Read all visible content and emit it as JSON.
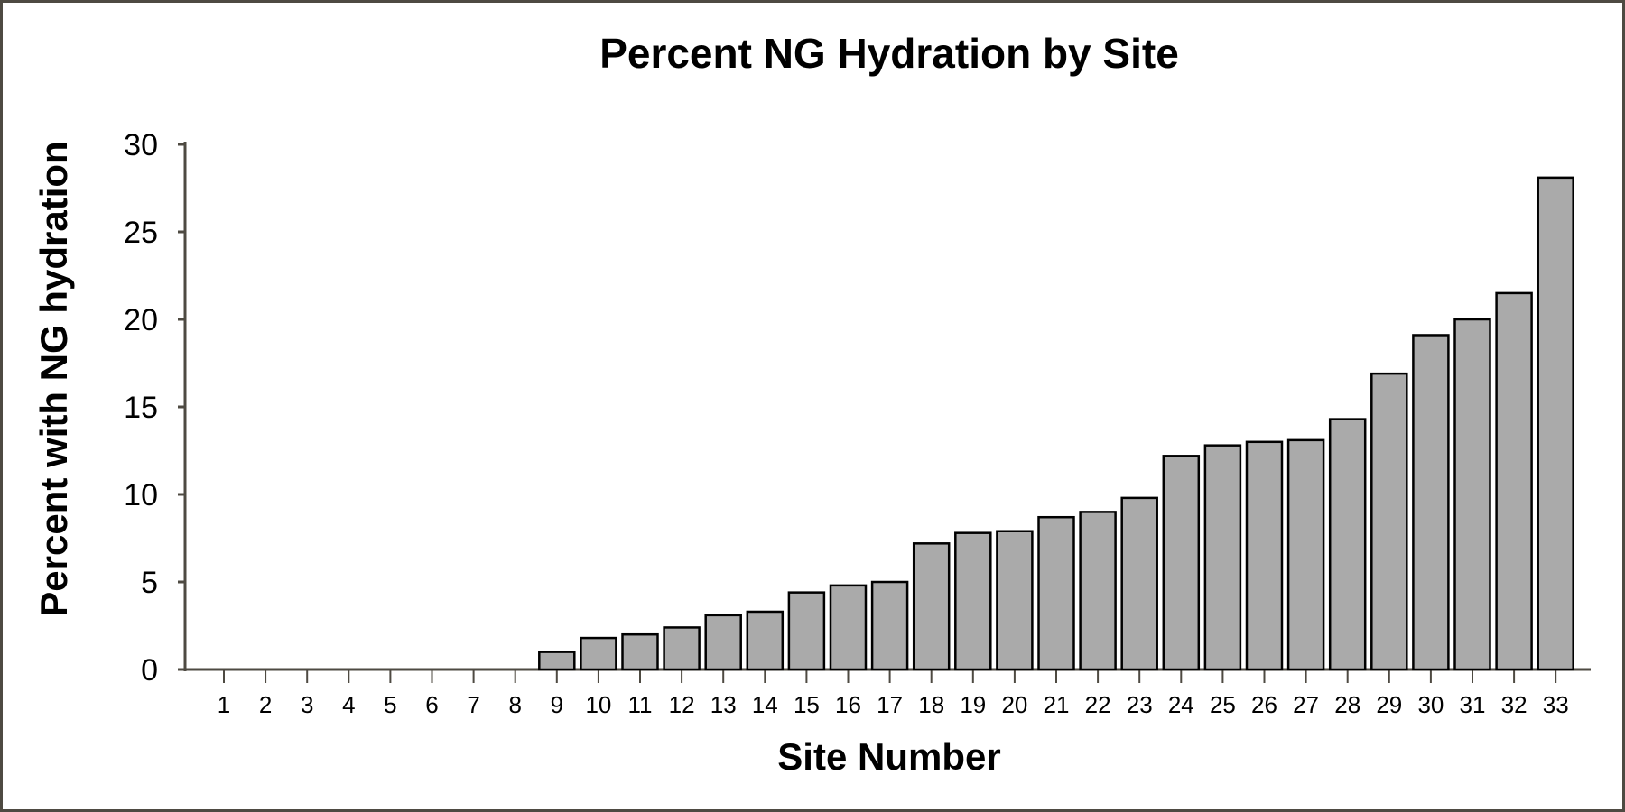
{
  "chart_data": {
    "type": "bar",
    "title": "Percent NG Hydration by Site",
    "xlabel": "Site Number",
    "ylabel": "Percent with NG hydration",
    "ylim": [
      0,
      30
    ],
    "yticks": [
      0,
      5,
      10,
      15,
      20,
      25,
      30
    ],
    "grid": false,
    "categories": [
      "1",
      "2",
      "3",
      "4",
      "5",
      "6",
      "7",
      "8",
      "9",
      "10",
      "11",
      "12",
      "13",
      "14",
      "15",
      "16",
      "17",
      "18",
      "19",
      "20",
      "21",
      "22",
      "23",
      "24",
      "25",
      "26",
      "27",
      "28",
      "29",
      "30",
      "31",
      "32",
      "33"
    ],
    "values": [
      0,
      0,
      0,
      0,
      0,
      0,
      0,
      0,
      1.0,
      1.8,
      2.0,
      2.4,
      3.1,
      3.3,
      4.4,
      4.8,
      5.0,
      7.2,
      7.8,
      7.9,
      8.7,
      9.0,
      9.8,
      12.2,
      12.8,
      13.0,
      13.1,
      14.3,
      16.9,
      19.1,
      20.0,
      21.5,
      28.1
    ],
    "colors": {
      "bar_fill": "#aaaaaa",
      "bar_stroke": "#000000",
      "axis": "#4e4a42",
      "frame": "#4e4a42"
    }
  }
}
